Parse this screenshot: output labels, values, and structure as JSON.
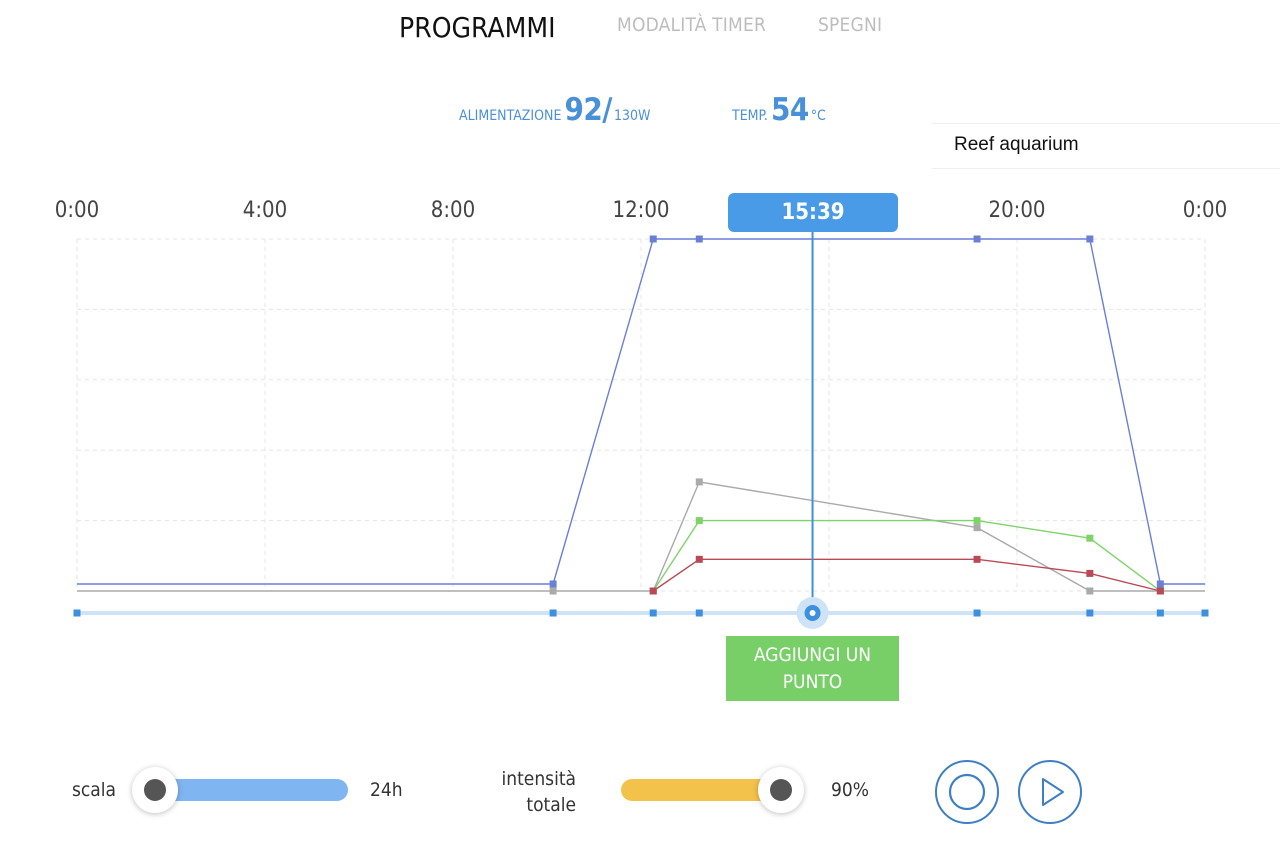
{
  "tabs": [
    {
      "label": "PROGRAMMI",
      "active": true
    },
    {
      "label": "MODALITÀ TIMER",
      "active": false
    },
    {
      "label": "SPEGNI",
      "active": false
    }
  ],
  "stats": {
    "power": {
      "label": "ALIMENTAZIONE",
      "value": "92/",
      "unit": "130W"
    },
    "temp": {
      "label": "TEMP.",
      "value": "54",
      "unit": "°C"
    }
  },
  "profile": {
    "name": "Reef aquarium"
  },
  "timeline": {
    "hour_labels": [
      "0:00",
      "4:00",
      "8:00",
      "12:00",
      "20:00",
      "0:00"
    ],
    "current_time": "15:39"
  },
  "chart_data": {
    "type": "line",
    "x_unit": "hours",
    "xlim": [
      0,
      24
    ],
    "ylim": [
      0,
      100
    ],
    "current_time_hours": 15.65,
    "control_points_hours": [
      0,
      10.13,
      12.26,
      13.24,
      19.15,
      21.55,
      23.05,
      24
    ],
    "series": [
      {
        "color": "#6a7fd6",
        "points": [
          [
            0,
            2
          ],
          [
            10.13,
            2
          ],
          [
            12.26,
            100
          ],
          [
            13.24,
            100
          ],
          [
            19.15,
            100
          ],
          [
            21.55,
            100
          ],
          [
            23.05,
            2
          ],
          [
            24,
            2
          ]
        ]
      },
      {
        "color": "#aaaaaa",
        "points": [
          [
            0,
            0
          ],
          [
            10.13,
            0
          ],
          [
            12.26,
            0
          ],
          [
            13.24,
            31
          ],
          [
            19.15,
            18
          ],
          [
            21.55,
            0
          ],
          [
            23.05,
            0
          ],
          [
            24,
            0
          ]
        ]
      },
      {
        "color": "#7ed36a",
        "points": [
          [
            12.26,
            0
          ],
          [
            13.24,
            20
          ],
          [
            19.15,
            20
          ],
          [
            21.55,
            15
          ],
          [
            23.05,
            0
          ]
        ]
      },
      {
        "color": "#b94a55",
        "points": [
          [
            12.26,
            0
          ],
          [
            13.24,
            9
          ],
          [
            19.15,
            9
          ],
          [
            21.55,
            5
          ],
          [
            23.05,
            0
          ]
        ]
      }
    ]
  },
  "add_point": {
    "label_line1": "AGGIUNGI UN",
    "label_line2": "PUNTO"
  },
  "controls": {
    "scale": {
      "label": "scala",
      "value": "24h",
      "fraction": 0.0
    },
    "intensity": {
      "label_line1": "intensità",
      "label_line2": "totale",
      "value": "90%",
      "fraction": 0.9
    }
  },
  "buttons": {
    "record_icon": "circle-icon",
    "play_icon": "play-icon"
  },
  "colors": {
    "accent": "#4a9be7",
    "green": "#78cf68",
    "intensity": "#f3c24a",
    "scale_track": "#7fb5f0"
  }
}
